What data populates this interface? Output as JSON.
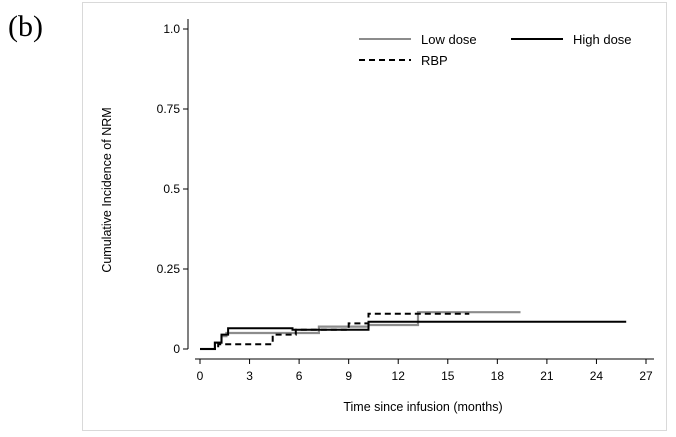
{
  "panel_label": "(b)",
  "chart_data": {
    "type": "line",
    "step": true,
    "xlabel": "Time since infusion (months)",
    "ylabel": "Cumulative Incidence of NRM",
    "xlim": [
      0,
      27
    ],
    "ylim": [
      0,
      1.0
    ],
    "x_ticks": [
      {
        "value": 0,
        "label": "0"
      },
      {
        "value": 3,
        "label": "3"
      },
      {
        "value": 6,
        "label": "6"
      },
      {
        "value": 9,
        "label": "9"
      },
      {
        "value": 12,
        "label": "12"
      },
      {
        "value": 15,
        "label": "15"
      },
      {
        "value": 18,
        "label": "18"
      },
      {
        "value": 21,
        "label": "21"
      },
      {
        "value": 24,
        "label": "24"
      },
      {
        "value": 27,
        "label": "27"
      }
    ],
    "y_ticks": [
      {
        "value": 0,
        "label": "0"
      },
      {
        "value": 0.25,
        "label": "0.25"
      },
      {
        "value": 0.5,
        "label": "0.5"
      },
      {
        "value": 0.75,
        "label": "0.75"
      },
      {
        "value": 1.0,
        "label": "1.0"
      }
    ],
    "grid": false,
    "legend_position": "top-right",
    "series": [
      {
        "name": "Low dose",
        "color": "#8c8c8c",
        "dash": "solid",
        "points": [
          [
            0,
            0
          ],
          [
            0.9,
            0
          ],
          [
            0.9,
            0.02
          ],
          [
            1.3,
            0.02
          ],
          [
            1.3,
            0.04
          ],
          [
            1.6,
            0.04
          ],
          [
            1.6,
            0.05
          ],
          [
            7.2,
            0.05
          ],
          [
            7.2,
            0.07
          ],
          [
            10.2,
            0.07
          ],
          [
            10.2,
            0.075
          ],
          [
            13.2,
            0.075
          ],
          [
            13.2,
            0.115
          ],
          [
            19.4,
            0.115
          ]
        ]
      },
      {
        "name": "High dose",
        "color": "#000000",
        "dash": "solid",
        "points": [
          [
            0,
            0
          ],
          [
            0.9,
            0
          ],
          [
            0.9,
            0.02
          ],
          [
            1.3,
            0.02
          ],
          [
            1.3,
            0.045
          ],
          [
            1.7,
            0.045
          ],
          [
            1.7,
            0.065
          ],
          [
            5.6,
            0.065
          ],
          [
            5.6,
            0.06
          ],
          [
            10.2,
            0.06
          ],
          [
            10.2,
            0.085
          ],
          [
            25.8,
            0.085
          ]
        ]
      },
      {
        "name": "RBP",
        "color": "#000000",
        "dash": "dashed",
        "points": [
          [
            0,
            0
          ],
          [
            1.1,
            0
          ],
          [
            1.1,
            0.015
          ],
          [
            4.4,
            0.015
          ],
          [
            4.4,
            0.045
          ],
          [
            5.8,
            0.045
          ],
          [
            5.8,
            0.06
          ],
          [
            9.0,
            0.06
          ],
          [
            9.0,
            0.08
          ],
          [
            10.2,
            0.08
          ],
          [
            10.2,
            0.11
          ],
          [
            16.3,
            0.11
          ]
        ]
      }
    ]
  }
}
